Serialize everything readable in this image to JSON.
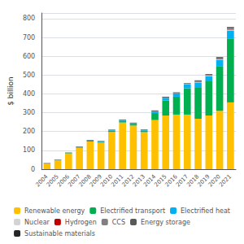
{
  "chart_data": {
    "type": "bar",
    "stacked": true,
    "ylabel": "$ billion",
    "categories": [
      "2004",
      "2005",
      "2006",
      "2007",
      "2008",
      "2009",
      "2010",
      "2011",
      "2012",
      "2013",
      "2014",
      "2015",
      "2016",
      "2017",
      "2018",
      "2019",
      "2020",
      "2021"
    ],
    "series": [
      {
        "name": "Renewable energy",
        "color": "#FFC000",
        "values": [
          30,
          47,
          84,
          114,
          147,
          141,
          198,
          248,
          232,
          197,
          261,
          285,
          290,
          290,
          268,
          285,
          310,
          355
        ]
      },
      {
        "name": "Electrified transport",
        "color": "#00B050",
        "values": [
          0,
          1,
          2,
          3,
          4,
          4,
          7,
          9,
          9,
          8,
          37,
          80,
          95,
          140,
          168,
          182,
          238,
          340
        ]
      },
      {
        "name": "Electrified heat",
        "color": "#00B0F0",
        "values": [
          0,
          0,
          0,
          1,
          2,
          2,
          3,
          4,
          4,
          4,
          8,
          14,
          18,
          20,
          24,
          28,
          34,
          42
        ]
      },
      {
        "name": "Nuclear",
        "color": "#D3D3D3",
        "values": [
          0,
          0,
          0,
          0,
          0,
          0,
          0,
          0,
          0,
          0,
          0,
          0,
          0,
          2,
          2,
          2,
          2,
          3
        ]
      },
      {
        "name": "Hydrogen",
        "color": "#C00000",
        "values": [
          0,
          0,
          0,
          0,
          0,
          0,
          0,
          0,
          0,
          0,
          0,
          0,
          0,
          0,
          1,
          1,
          1,
          2
        ]
      },
      {
        "name": "CCS",
        "color": "#808080",
        "values": [
          0,
          0,
          0,
          0,
          0,
          0,
          0,
          0,
          0,
          0,
          1,
          1,
          1,
          1,
          2,
          2,
          3,
          4
        ]
      },
      {
        "name": "Energy storage",
        "color": "#595959",
        "values": [
          0,
          0,
          0,
          0,
          0,
          0,
          0,
          1,
          0,
          0,
          2,
          2,
          2,
          2,
          4,
          4,
          4,
          5
        ]
      },
      {
        "name": "Sustainable materials",
        "color": "#262626",
        "values": [
          2,
          2,
          2,
          2,
          2,
          2,
          2,
          2,
          2,
          2,
          3,
          3,
          2,
          2,
          3,
          2,
          3,
          4
        ]
      }
    ],
    "totals": [
      32,
      50,
      88,
      120,
      155,
      149,
      210,
      264,
      247,
      211,
      312,
      385,
      408,
      457,
      472,
      506,
      595,
      755
    ],
    "ylim": [
      0,
      830
    ],
    "yticks": [
      0,
      100,
      200,
      300,
      400,
      500,
      600,
      700,
      800
    ],
    "grid": true,
    "legend": "bottom"
  }
}
